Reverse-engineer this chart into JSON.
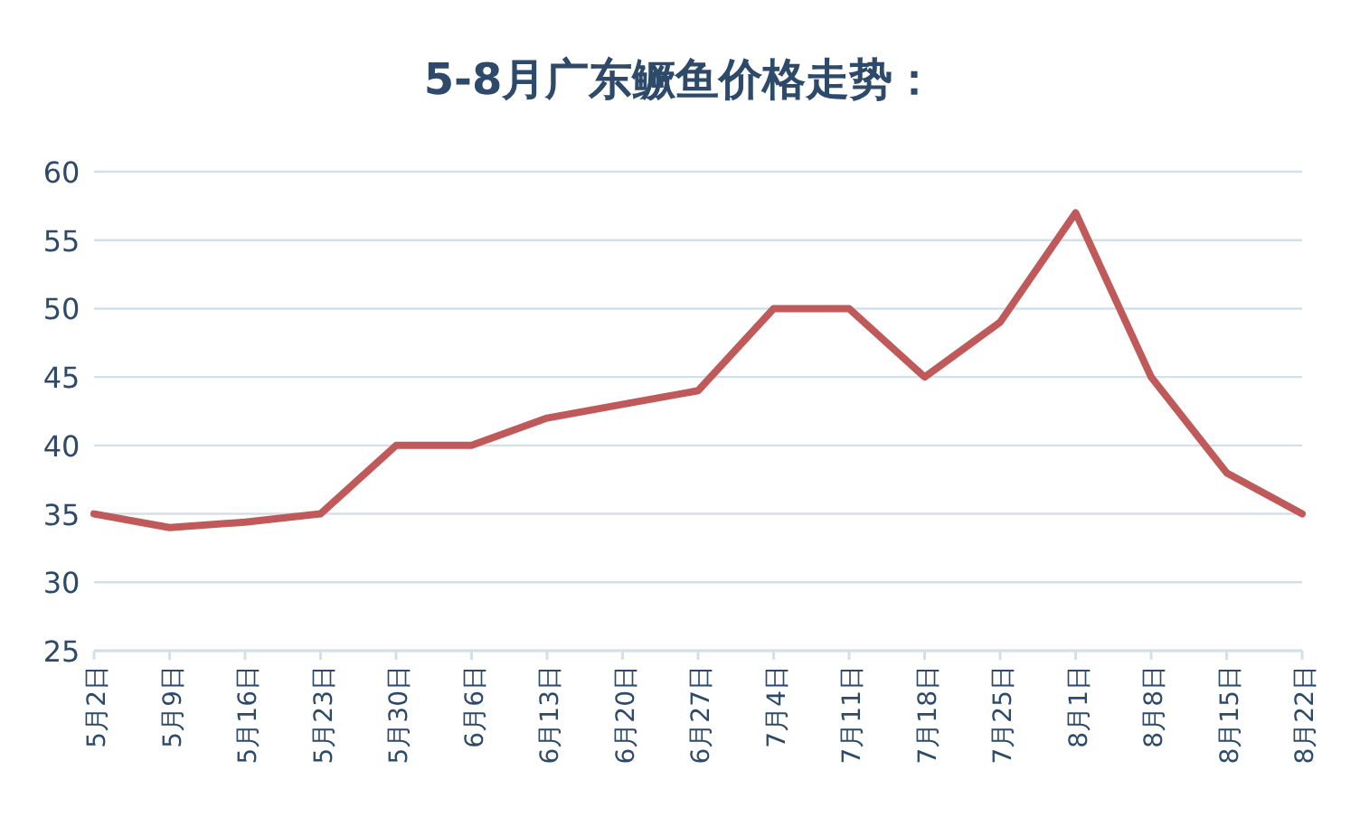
{
  "chart_data": {
    "type": "line",
    "title": "5-8月广东鳜鱼价格走势：",
    "categories": [
      "5月2日",
      "5月9日",
      "5月16日",
      "5月23日",
      "5月30日",
      "6月6日",
      "6月13日",
      "6月20日",
      "6月27日",
      "7月4日",
      "7月11日",
      "7月18日",
      "7月25日",
      "8月1日",
      "8月8日",
      "8月15日",
      "8月22日"
    ],
    "series": [
      {
        "color": "#c0595a",
        "values": [
          35,
          34,
          34.4,
          35,
          40,
          40,
          42,
          43,
          44,
          50,
          50,
          45,
          49,
          57,
          45,
          38,
          35
        ]
      }
    ],
    "ylim": [
      25,
      60
    ],
    "yticks": [
      25,
      30,
      35,
      40,
      45,
      50,
      55,
      60
    ],
    "grid": "y",
    "marker": "none",
    "line_style": "solid"
  }
}
